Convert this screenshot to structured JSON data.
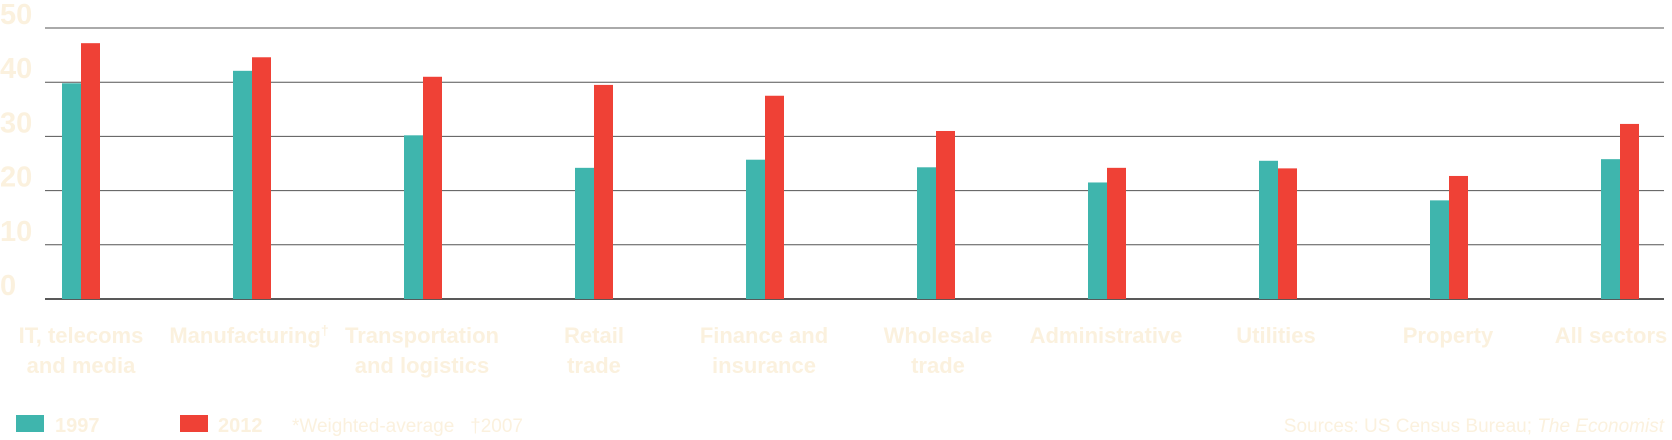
{
  "chart_data": {
    "type": "bar",
    "categories": [
      [
        "IT, telecoms",
        "and media"
      ],
      [
        "Manufacturing",
        "†"
      ],
      [
        "Transportation",
        "and logistics"
      ],
      [
        "Retail",
        "trade"
      ],
      [
        "Finance and",
        "insurance"
      ],
      [
        "Wholesale",
        "trade"
      ],
      [
        "Administrative"
      ],
      [
        "Utilities"
      ],
      [
        "Property"
      ],
      [
        "All sectors"
      ]
    ],
    "series": [
      {
        "name": "1997",
        "color": "#3fb5ad",
        "values": [
          39.8,
          42.1,
          30.2,
          24.2,
          25.7,
          24.3,
          21.5,
          25.5,
          18.2,
          25.8
        ]
      },
      {
        "name": "2012",
        "color": "#ef4136",
        "values": [
          47.2,
          44.6,
          41.0,
          39.5,
          37.5,
          31.0,
          24.2,
          24.1,
          22.7,
          32.3
        ]
      }
    ],
    "yticks": [
      0,
      10,
      20,
      30,
      40,
      50
    ],
    "ylim": [
      0,
      50
    ],
    "grid": true,
    "legend_position": "bottom-left",
    "footnote": "*Weighted-average   †2007",
    "source_prefix": "Sources: US Census Bureau; ",
    "source_italic": "The Economist"
  }
}
